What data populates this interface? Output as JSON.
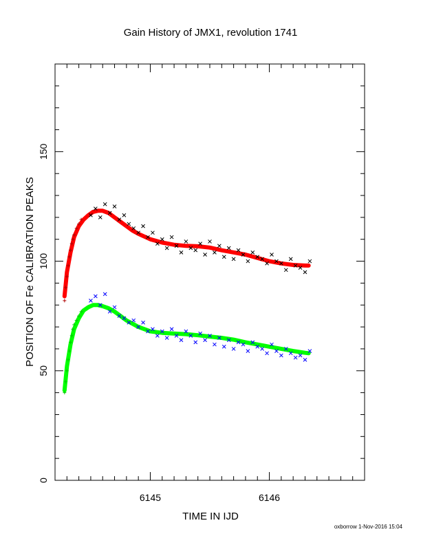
{
  "chart_data": {
    "type": "scatter",
    "title": "Gain History of JMX1, revolution 1741",
    "xlabel": "TIME IN IJD",
    "ylabel": "POSITION OF Fe CALIBRATION PEAKS",
    "xlim": [
      6144.2,
      6146.8
    ],
    "ylim": [
      0,
      190
    ],
    "x_ticks": [
      6145,
      6146
    ],
    "y_ticks": [
      0,
      50,
      100,
      150
    ],
    "grid": false,
    "legend": "none",
    "series": [
      {
        "kind": "points",
        "color": "#000000",
        "marker": "x",
        "x": [
          6144.5,
          6144.54,
          6144.58,
          6144.62,
          6144.66,
          6144.7,
          6144.74,
          6144.78,
          6144.82,
          6144.86,
          6144.9,
          6144.94,
          6144.98,
          6145.02,
          6145.06,
          6145.1,
          6145.14,
          6145.18,
          6145.22,
          6145.26,
          6145.3,
          6145.34,
          6145.38,
          6145.42,
          6145.46,
          6145.5,
          6145.54,
          6145.58,
          6145.62,
          6145.66,
          6145.7,
          6145.74,
          6145.78,
          6145.82,
          6145.86,
          6145.9,
          6145.94,
          6145.98,
          6146.02,
          6146.06,
          6146.1,
          6146.14,
          6146.18,
          6146.22,
          6146.26,
          6146.3,
          6146.34
        ],
        "y": [
          121,
          124,
          120,
          126,
          122,
          125,
          119,
          121,
          117,
          115,
          113,
          116,
          111,
          113,
          108,
          110,
          106,
          111,
          107,
          104,
          109,
          106,
          105,
          108,
          103,
          109,
          104,
          107,
          102,
          106,
          101,
          105,
          103,
          100,
          104,
          102,
          101,
          99,
          103,
          100,
          99,
          96,
          101,
          98,
          97,
          95,
          100
        ]
      },
      {
        "kind": "points",
        "color": "#0000ff",
        "marker": "x",
        "x": [
          6144.5,
          6144.54,
          6144.58,
          6144.62,
          6144.66,
          6144.7,
          6144.74,
          6144.78,
          6144.82,
          6144.86,
          6144.9,
          6144.94,
          6144.98,
          6145.02,
          6145.06,
          6145.1,
          6145.14,
          6145.18,
          6145.22,
          6145.26,
          6145.3,
          6145.34,
          6145.38,
          6145.42,
          6145.46,
          6145.5,
          6145.54,
          6145.58,
          6145.62,
          6145.66,
          6145.7,
          6145.74,
          6145.78,
          6145.82,
          6145.86,
          6145.9,
          6145.94,
          6145.98,
          6146.02,
          6146.06,
          6146.1,
          6146.14,
          6146.18,
          6146.22,
          6146.26,
          6146.3,
          6146.34
        ],
        "y": [
          82,
          84,
          80,
          85,
          77,
          79,
          75,
          74,
          72,
          73,
          70,
          72,
          68,
          69,
          66,
          68,
          65,
          69,
          66,
          64,
          68,
          66,
          63,
          67,
          64,
          66,
          62,
          65,
          61,
          64,
          60,
          63,
          62,
          59,
          63,
          61,
          60,
          58,
          62,
          59,
          57,
          60,
          58,
          56,
          57,
          55,
          59
        ]
      },
      {
        "kind": "line",
        "color": "#ff0000",
        "x": [
          6144.28,
          6144.3,
          6144.33,
          6144.36,
          6144.4,
          6144.44,
          6144.48,
          6144.52,
          6144.56,
          6144.6,
          6144.65,
          6144.7,
          6144.75,
          6144.8,
          6144.85,
          6144.9,
          6145.0,
          6145.1,
          6145.2,
          6145.3,
          6145.4,
          6145.5,
          6145.6,
          6145.7,
          6145.8,
          6145.9,
          6146.0,
          6146.1,
          6146.2,
          6146.3,
          6146.33
        ],
        "y": [
          84,
          95,
          104,
          111,
          116,
          119,
          121,
          122.5,
          123,
          123,
          122,
          120,
          118,
          116,
          114,
          112.5,
          110,
          108.5,
          107.5,
          107,
          106.8,
          106.2,
          105,
          104,
          103,
          101.5,
          100,
          99,
          98.3,
          98,
          98
        ]
      },
      {
        "kind": "line",
        "color": "#00ff00",
        "x": [
          6144.28,
          6144.3,
          6144.33,
          6144.36,
          6144.4,
          6144.44,
          6144.48,
          6144.52,
          6144.56,
          6144.6,
          6144.65,
          6144.7,
          6144.75,
          6144.8,
          6144.85,
          6144.9,
          6145.0,
          6145.1,
          6145.2,
          6145.3,
          6145.4,
          6145.5,
          6145.6,
          6145.7,
          6145.8,
          6145.9,
          6146.0,
          6146.1,
          6146.2,
          6146.3,
          6146.33
        ],
        "y": [
          41,
          52,
          62,
          69,
          74,
          77.5,
          79,
          80,
          80,
          79.5,
          78.5,
          77,
          75,
          73,
          71.5,
          70,
          68,
          67.3,
          67,
          66.7,
          66.2,
          65.6,
          65,
          64.2,
          63,
          62,
          61,
          60,
          59,
          58.2,
          58
        ]
      },
      {
        "kind": "rise",
        "color": "#b00000",
        "marker": "+",
        "x": [
          6144.28,
          6144.29,
          6144.3,
          6144.31,
          6144.32,
          6144.33,
          6144.34,
          6144.35,
          6144.36,
          6144.38,
          6144.4,
          6144.42
        ],
        "y": [
          82,
          88,
          93,
          98,
          102,
          105,
          108,
          110,
          112,
          115,
          117,
          119
        ]
      },
      {
        "kind": "rise",
        "color": "#00cc00",
        "marker": "+",
        "x": [
          6144.28,
          6144.29,
          6144.3,
          6144.31,
          6144.32,
          6144.33,
          6144.34,
          6144.35,
          6144.36,
          6144.38,
          6144.4,
          6144.42
        ],
        "y": [
          40,
          45,
          50,
          55,
          59,
          63,
          66,
          69,
          71,
          73,
          75,
          77
        ]
      }
    ]
  },
  "footer": "oxborrow  1-Nov-2016 15:04"
}
